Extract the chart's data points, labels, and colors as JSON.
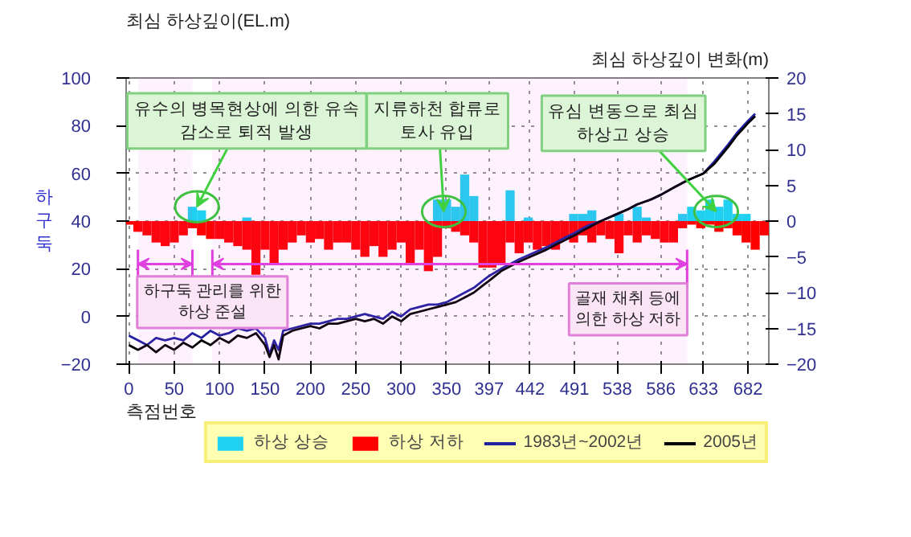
{
  "chart_data": {
    "type": "bar",
    "ylabel": "최심 하상깊이(EL.m)",
    "y2label": "최심 하상깊이 변화(m)",
    "xlabel": "측점번호",
    "xlim": [
      -3,
      705
    ],
    "xticks": [
      0,
      50,
      100,
      150,
      200,
      250,
      300,
      350,
      397,
      442,
      491,
      538,
      586,
      633,
      682
    ],
    "ylim": [
      -20,
      100
    ],
    "yticks": [
      -20,
      0,
      20,
      40,
      60,
      80,
      100
    ],
    "y2lim": [
      -20,
      20
    ],
    "y2ticks": [
      -20,
      -15,
      -10,
      -5,
      0,
      5,
      10,
      15,
      20
    ],
    "grid": true,
    "legend": "bottom",
    "line_style": "solid",
    "series": [
      {
        "name": "하상 상승",
        "axis": "y2",
        "color": "#20d0f0",
        "x": [
          70,
          80,
          130,
          340,
          350,
          360,
          370,
          380,
          420,
          440,
          490,
          500,
          510,
          540,
          560,
          570,
          610,
          620,
          630,
          640,
          650,
          660,
          670,
          680
        ],
        "values": [
          2,
          1.5,
          0.5,
          3,
          3,
          2,
          6.5,
          3.5,
          4.3,
          0.5,
          1,
          1,
          1.5,
          1,
          2,
          0.5,
          1,
          2,
          1.5,
          3,
          2,
          3,
          1,
          1
        ]
      },
      {
        "name": "하상 저하",
        "axis": "y2",
        "color": "#ff0000",
        "x": [
          0,
          10,
          20,
          30,
          40,
          50,
          60,
          70,
          80,
          90,
          100,
          110,
          120,
          130,
          140,
          150,
          160,
          170,
          180,
          190,
          200,
          210,
          220,
          230,
          240,
          250,
          260,
          270,
          280,
          290,
          300,
          310,
          320,
          330,
          340,
          350,
          360,
          370,
          380,
          390,
          400,
          410,
          420,
          430,
          440,
          450,
          460,
          470,
          480,
          490,
          500,
          510,
          520,
          530,
          540,
          550,
          560,
          570,
          580,
          590,
          600,
          610,
          620,
          630,
          640,
          650,
          660,
          670,
          680,
          690,
          700
        ],
        "values": [
          -0.5,
          -1.5,
          -2,
          -3,
          -3.5,
          -3,
          -2,
          -1,
          -2,
          -2.5,
          -2.5,
          -3,
          -3.5,
          -4,
          -7.5,
          -4,
          -6,
          -4,
          -3,
          -2,
          -3,
          -2.5,
          -4,
          -3,
          -3,
          -4,
          -5,
          -3.5,
          -5,
          -4,
          -3,
          -6,
          -4,
          -7,
          -5,
          -1,
          -1.5,
          -2,
          -3,
          -6.5,
          -6.5,
          -6,
          -3,
          -4.5,
          -3,
          -4,
          -3.5,
          -4,
          -2.5,
          -3,
          -2,
          -3,
          -2,
          -2.5,
          -4.5,
          -2,
          -3,
          -2,
          -2.5,
          -3,
          -3,
          -1,
          -0.5,
          -1,
          -0.5,
          -1.5,
          -1,
          -2,
          -3,
          -4,
          -2
        ]
      },
      {
        "name": "1983년~2002년",
        "type": "line",
        "color": "#2020a0",
        "x": [
          0,
          10,
          20,
          30,
          40,
          50,
          60,
          70,
          80,
          90,
          100,
          110,
          120,
          130,
          140,
          150,
          155,
          160,
          165,
          170,
          180,
          190,
          200,
          210,
          220,
          230,
          240,
          250,
          260,
          270,
          280,
          290,
          300,
          310,
          320,
          330,
          340,
          350,
          360,
          370,
          380,
          390,
          397,
          410,
          420,
          430,
          442,
          460,
          475,
          491,
          505,
          520,
          538,
          550,
          560,
          575,
          586,
          600,
          615,
          633,
          645,
          660,
          670,
          682,
          690
        ],
        "values": [
          -8,
          -10,
          -12,
          -9,
          -10,
          -9,
          -10,
          -7,
          -9,
          -6,
          -8,
          -7,
          -5,
          -6,
          -5,
          -9,
          -16,
          -10,
          -14,
          -6,
          -5,
          -4,
          -3,
          -3,
          -2,
          -1,
          -1,
          0,
          1,
          0,
          -1,
          2,
          0,
          3,
          4,
          5,
          5,
          6,
          8,
          10,
          12,
          15,
          17,
          20,
          22,
          24,
          26,
          29,
          32,
          35,
          38,
          40,
          43,
          45,
          47,
          49,
          51,
          54,
          57,
          60,
          65,
          72,
          77,
          82,
          85
        ]
      },
      {
        "name": "2005년",
        "type": "line",
        "color": "#000000",
        "x": [
          0,
          10,
          20,
          30,
          40,
          50,
          60,
          70,
          80,
          90,
          100,
          110,
          120,
          130,
          140,
          150,
          155,
          160,
          165,
          170,
          180,
          190,
          200,
          210,
          220,
          230,
          240,
          250,
          260,
          270,
          280,
          290,
          300,
          310,
          320,
          330,
          340,
          350,
          360,
          370,
          380,
          390,
          397,
          410,
          420,
          430,
          442,
          460,
          475,
          491,
          505,
          520,
          538,
          550,
          560,
          575,
          586,
          600,
          615,
          633,
          645,
          660,
          670,
          682,
          690
        ],
        "values": [
          -12,
          -14,
          -12,
          -15,
          -12,
          -14,
          -11,
          -13,
          -10,
          -12,
          -9,
          -11,
          -8,
          -9,
          -7,
          -12,
          -17,
          -12,
          -18,
          -8,
          -6,
          -5,
          -4,
          -5,
          -3,
          -3,
          -2,
          -1,
          -2,
          -1,
          -3,
          0,
          -2,
          1,
          2,
          3,
          4,
          5,
          6,
          8,
          10,
          13,
          15,
          19,
          21,
          23,
          25,
          28,
          31,
          34,
          37,
          40,
          43,
          45,
          47,
          49,
          51,
          54,
          57,
          60,
          64,
          71,
          76,
          81,
          84
        ]
      }
    ],
    "bands": [
      {
        "axis": "x",
        "from": 10,
        "to": 70,
        "label": "하구둑 관리를 위한 하상 준설",
        "color": "#e040e0"
      },
      {
        "axis": "x",
        "from": 92,
        "to": 615,
        "label": "골재 채취 등에 의한 하상 저하",
        "color": "#e040e0"
      }
    ],
    "annotations": [
      {
        "text": "유수의 병목현상에 의한 유속 감소로 퇴적 발생",
        "x": 75,
        "y": 46
      },
      {
        "text": "지류하천 합류로 토사 유입",
        "x": 347,
        "y": 44
      },
      {
        "text": "유심 변동으로 최심 하상고 상승",
        "x": 647,
        "y": 44
      },
      "하구둑"
    ]
  }
}
